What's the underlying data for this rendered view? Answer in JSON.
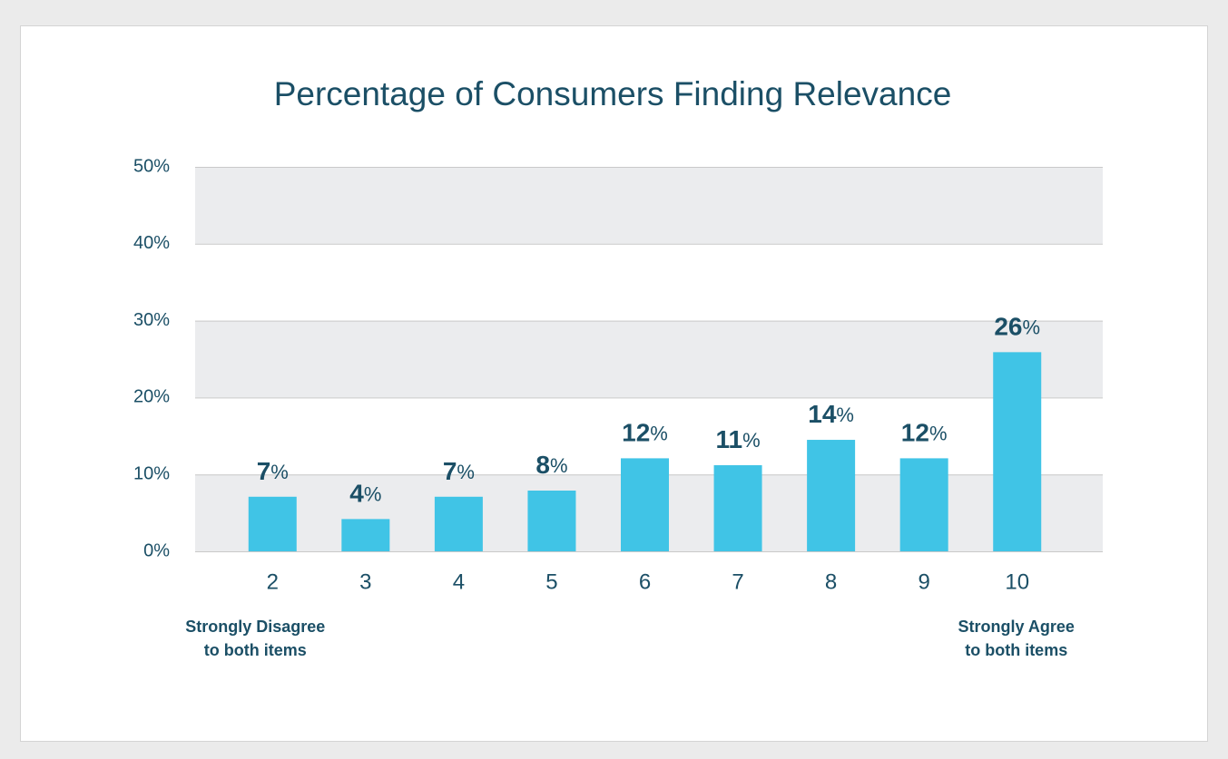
{
  "chart_data": {
    "type": "bar",
    "title": "Percentage of Consumers Finding Relevance",
    "categories": [
      "2",
      "3",
      "4",
      "5",
      "6",
      "7",
      "8",
      "9",
      "10"
    ],
    "values": [
      7.1,
      4.2,
      7.1,
      7.9,
      12.1,
      11.2,
      14.5,
      12.1,
      25.9
    ],
    "value_labels": [
      "7%",
      "4%",
      "7%",
      "8%",
      "12%",
      "11%",
      "14%",
      "12%",
      "26%"
    ],
    "color": "#40c4e6",
    "ylim": [
      0,
      50
    ],
    "yticks": [
      {
        "value": 0,
        "label": "0%"
      },
      {
        "value": 10,
        "label": "10%"
      },
      {
        "value": 20,
        "label": "20%"
      },
      {
        "value": 30,
        "label": "30%"
      },
      {
        "value": 40,
        "label": "40%"
      },
      {
        "value": 50,
        "label": "50%"
      }
    ],
    "grid": true,
    "annotations": [
      {
        "lines": [
          "Strongly Disagree",
          "to both items"
        ]
      },
      {
        "lines": [
          "Strongly Agree",
          "to both items"
        ]
      }
    ]
  }
}
